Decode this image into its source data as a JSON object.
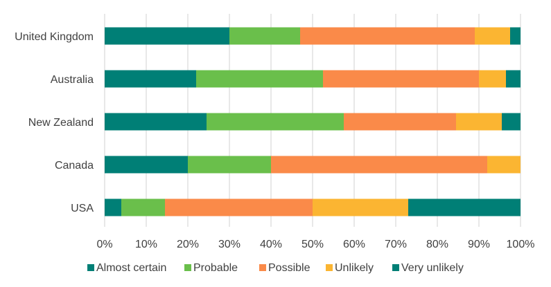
{
  "chart_data": {
    "type": "bar",
    "orientation": "horizontal",
    "stacked": "percent",
    "categories": [
      "United Kingdom",
      "Australia",
      "New Zealand",
      "Canada",
      "USA"
    ],
    "series": [
      {
        "name": "Almost certain",
        "color": "#007f76",
        "values": [
          30,
          22,
          24.5,
          20,
          4
        ]
      },
      {
        "name": "Probable",
        "color": "#6abf4b",
        "values": [
          17,
          30.5,
          33,
          20,
          10.5
        ]
      },
      {
        "name": "Possible",
        "color": "#fa8a49",
        "values": [
          42,
          37.5,
          27,
          52,
          35.5
        ]
      },
      {
        "name": "Unlikely",
        "color": "#fbb532",
        "values": [
          8.5,
          6.5,
          11,
          8,
          23
        ]
      },
      {
        "name": "Very unlikely",
        "color": "#007f76",
        "values": [
          2.5,
          3.5,
          4.5,
          0,
          27
        ]
      }
    ],
    "x_ticks": [
      "0%",
      "10%",
      "20%",
      "30%",
      "40%",
      "50%",
      "60%",
      "70%",
      "80%",
      "90%",
      "100%"
    ],
    "xlim": [
      0,
      100
    ],
    "grid": "vertical",
    "legend": "bottom",
    "title": "",
    "xlabel": "",
    "ylabel": ""
  }
}
